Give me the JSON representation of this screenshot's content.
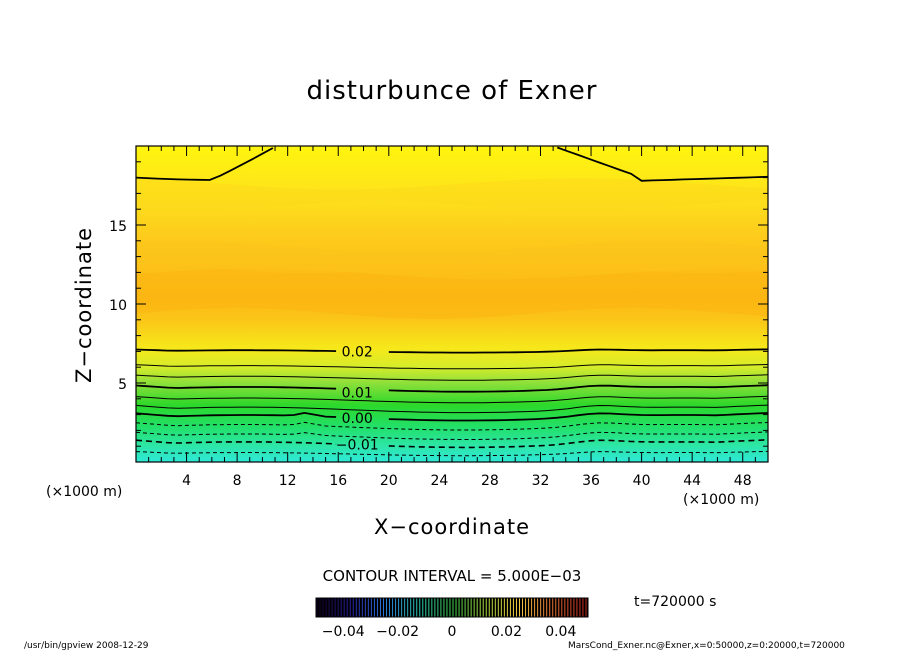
{
  "chart_data": {
    "type": "heatmap",
    "title": "disturbunce of Exner",
    "xlabel": "X−coordinate",
    "ylabel": "Z−coordinate",
    "x_unit": "(×1000 m)",
    "xlim": [
      0,
      50
    ],
    "ylim": [
      0,
      20
    ],
    "x_ticks": [
      4,
      8,
      12,
      16,
      20,
      24,
      28,
      32,
      36,
      40,
      44,
      48
    ],
    "y_ticks": [
      5,
      10,
      15
    ],
    "contour_interval_text": "CONTOUR INTERVAL = 5.000E−03",
    "contour_labels": [
      {
        "text": "0.02",
        "x": 17.5,
        "z": 7.0
      },
      {
        "text": "0.01",
        "x": 17.5,
        "z": 4.4
      },
      {
        "text": "0.00",
        "x": 17.5,
        "z": 2.8
      },
      {
        "text": "−0.01",
        "x": 17.5,
        "z": 1.1
      }
    ],
    "colorbar": {
      "ticks": [
        "−0.04",
        "−0.02",
        "0",
        "0.02",
        "0.04"
      ],
      "range": [
        -0.05,
        0.05
      ]
    },
    "time_text": "t=720000 s",
    "footer_left": "/usr/bin/gpview   2008-12-29",
    "footer_right": "MarsCond_Exner.nc@Exner,x=0:50000,z=0:20000,t=720000"
  }
}
